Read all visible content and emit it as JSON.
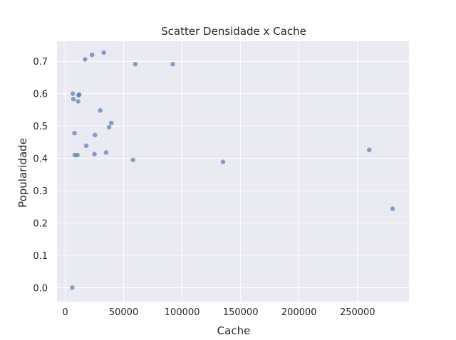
{
  "chart_data": {
    "type": "scatter",
    "title": "Scatter Densidade x Cache",
    "xlabel": "Cache",
    "ylabel": "Popularidade",
    "xlim": [
      -7000,
      294000
    ],
    "ylim": [
      -0.043,
      0.762
    ],
    "xticks": [
      0,
      50000,
      100000,
      150000,
      200000,
      250000
    ],
    "xtick_labels": [
      "0",
      "50000",
      "100000",
      "150000",
      "200000",
      "250000"
    ],
    "yticks": [
      0.0,
      0.1,
      0.2,
      0.3,
      0.4,
      0.5,
      0.6,
      0.7
    ],
    "ytick_labels": [
      "0.0",
      "0.1",
      "0.2",
      "0.3",
      "0.4",
      "0.5",
      "0.6",
      "0.7"
    ],
    "grid": true,
    "colors": {
      "background": "#eaeaf2",
      "grid": "#ffffff",
      "point": "#4c72b0"
    },
    "points": [
      {
        "x": 6000,
        "y": 0.0
      },
      {
        "x": 6500,
        "y": 0.6
      },
      {
        "x": 7000,
        "y": 0.583
      },
      {
        "x": 8000,
        "y": 0.478
      },
      {
        "x": 8200,
        "y": 0.41
      },
      {
        "x": 10500,
        "y": 0.41
      },
      {
        "x": 11000,
        "y": 0.576
      },
      {
        "x": 11500,
        "y": 0.595
      },
      {
        "x": 12000,
        "y": 0.597
      },
      {
        "x": 17000,
        "y": 0.706
      },
      {
        "x": 18000,
        "y": 0.439
      },
      {
        "x": 23000,
        "y": 0.72
      },
      {
        "x": 25000,
        "y": 0.413
      },
      {
        "x": 25500,
        "y": 0.472
      },
      {
        "x": 30000,
        "y": 0.548
      },
      {
        "x": 33000,
        "y": 0.727
      },
      {
        "x": 35000,
        "y": 0.418
      },
      {
        "x": 37500,
        "y": 0.496
      },
      {
        "x": 39500,
        "y": 0.509
      },
      {
        "x": 58000,
        "y": 0.395
      },
      {
        "x": 60000,
        "y": 0.691
      },
      {
        "x": 92000,
        "y": 0.691
      },
      {
        "x": 135000,
        "y": 0.389
      },
      {
        "x": 260000,
        "y": 0.426
      },
      {
        "x": 280000,
        "y": 0.244
      }
    ]
  }
}
